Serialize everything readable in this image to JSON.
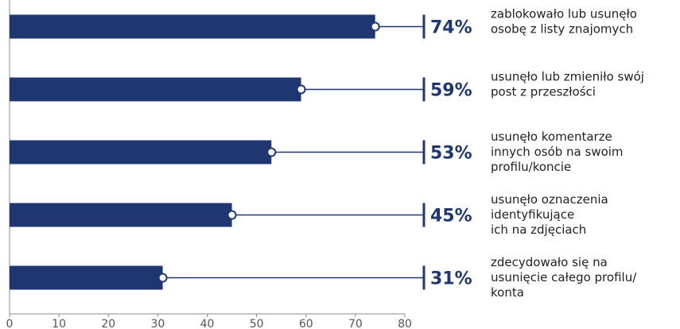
{
  "chart_data": {
    "type": "bar",
    "orientation": "horizontal",
    "categories": [
      [
        "zablokowało lub usunęło",
        "osobę z listy znajomych"
      ],
      [
        "usunęło lub zmieniło swój",
        "post z przeszłości"
      ],
      [
        "usunęło komentarze",
        "innych osób na swoim",
        "profilu/koncie"
      ],
      [
        "usunęło oznaczenia",
        "identyfikujące",
        "ich na zdjęciach"
      ],
      [
        "zdecydowało się na",
        "usunięcie całego profilu/",
        "konta"
      ]
    ],
    "values": [
      74,
      59,
      53,
      45,
      31
    ],
    "value_labels": [
      "74%",
      "59%",
      "53%",
      "45%",
      "31%"
    ],
    "color": "#1f3771",
    "xlim": [
      0,
      80
    ],
    "xticks": [
      0,
      10,
      20,
      30,
      40,
      50,
      60,
      70,
      80
    ]
  }
}
